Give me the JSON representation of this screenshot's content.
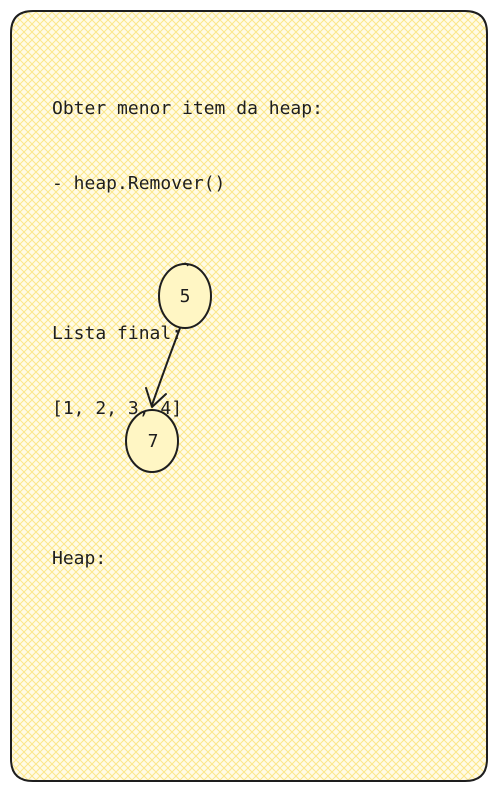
{
  "text": {
    "line1": "Obter menor item da heap:",
    "line2": "- heap.Remover()",
    "line3": "",
    "line4": "Lista final:",
    "line5": "[1, 2, 3, 4]",
    "line6": "",
    "line7": "Heap:"
  },
  "heap": {
    "nodes": [
      {
        "id": "root",
        "label": "5"
      },
      {
        "id": "left-child",
        "label": "7"
      }
    ],
    "edges": [
      {
        "from": "root",
        "to": "left-child"
      }
    ]
  },
  "colors": {
    "card_fill": "#fff9db",
    "hatch": "#fbe78a",
    "stroke": "#1e1e1e"
  }
}
